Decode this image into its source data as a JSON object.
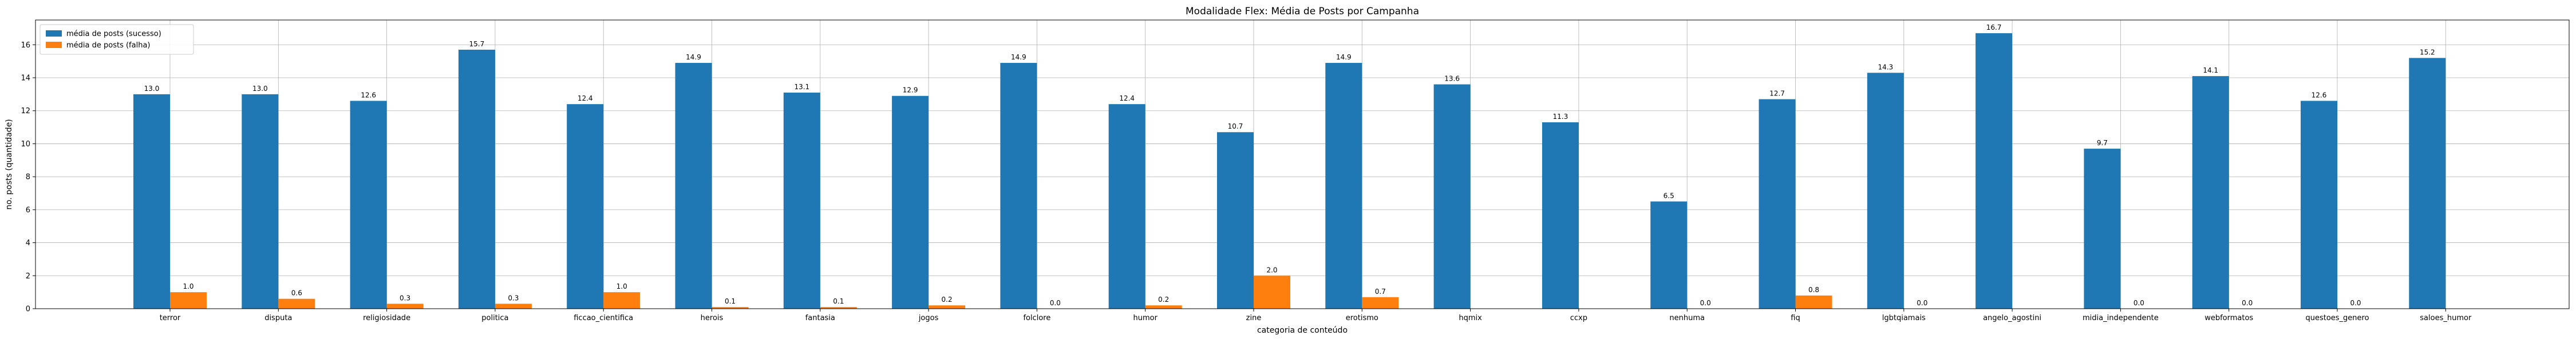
{
  "chart_data": {
    "type": "bar",
    "title": "Modalidade Flex: Média de Posts por Campanha",
    "xlabel": "categoria de conteúdo",
    "ylabel": "no. posts (quantidade)",
    "ylim": [
      0,
      17.5
    ],
    "yticks": [
      0,
      2,
      4,
      6,
      8,
      10,
      12,
      14,
      16
    ],
    "grid": true,
    "legend_position": "top-left",
    "categories": [
      "terror",
      "disputa",
      "religiosidade",
      "politica",
      "ficcao_cientifica",
      "herois",
      "fantasia",
      "jogos",
      "folclore",
      "humor",
      "zine",
      "erotismo",
      "hqmix",
      "ccxp",
      "nenhuma",
      "fiq",
      "lgbtqiamais",
      "angelo_agostini",
      "midia_independente",
      "webformatos",
      "questoes_genero",
      "saloes_humor"
    ],
    "series": [
      {
        "name": "média de posts (sucesso)",
        "color": "#1f77b4",
        "values": [
          13.0,
          13.0,
          12.6,
          15.7,
          12.4,
          14.9,
          13.1,
          12.9,
          14.9,
          12.4,
          10.7,
          14.9,
          13.6,
          11.3,
          6.5,
          12.7,
          14.3,
          16.7,
          9.7,
          14.1,
          12.6,
          15.2
        ],
        "labels": [
          "13.0",
          "13.0",
          "12.6",
          "15.7",
          "12.4",
          "14.9",
          "13.1",
          "12.9",
          "14.9",
          "12.4",
          "10.7",
          "14.9",
          "13.6",
          "11.3",
          "6.5",
          "12.7",
          "14.3",
          "16.7",
          "9.7",
          "14.1",
          "12.6",
          "15.2"
        ]
      },
      {
        "name": "média de posts (falha)",
        "color": "#ff7f0e",
        "values": [
          1.0,
          0.6,
          0.3,
          0.3,
          1.0,
          0.1,
          0.1,
          0.2,
          0.0,
          0.2,
          2.0,
          0.7,
          null,
          null,
          0.0,
          0.8,
          0.0,
          null,
          0.0,
          0.0,
          0.0,
          null
        ],
        "labels": [
          "1.0",
          "0.6",
          "0.3",
          "0.3",
          "1.0",
          "0.1",
          "0.1",
          "0.2",
          "0.0",
          "0.2",
          "2.0",
          "0.7",
          null,
          null,
          "0.0",
          "0.8",
          "0.0",
          null,
          "0.0",
          "0.0",
          "0.0",
          null
        ]
      }
    ]
  }
}
